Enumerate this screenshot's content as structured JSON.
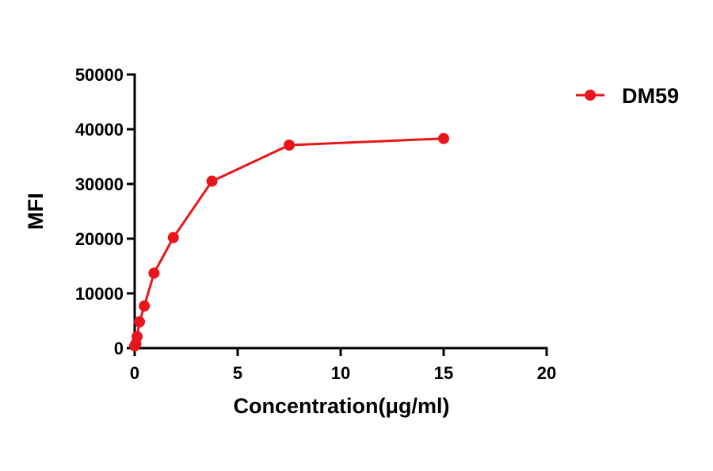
{
  "chart_data": {
    "type": "line",
    "title": "",
    "xlabel": "Concentration(μg/ml)",
    "ylabel": "MFI",
    "xlim": [
      0,
      20
    ],
    "ylim": [
      0,
      50000
    ],
    "xticks": [
      0,
      5,
      10,
      15,
      20
    ],
    "yticks": [
      0,
      10000,
      20000,
      30000,
      40000,
      50000
    ],
    "grid": false,
    "legend_position": "top-right",
    "series": [
      {
        "name": "DM59",
        "color": "#e8161b",
        "marker": "circle",
        "x": [
          0.0,
          0.0586,
          0.117,
          0.234,
          0.469,
          0.938,
          1.875,
          3.75,
          7.5,
          15
        ],
        "y": [
          400,
          800,
          2100,
          4800,
          7700,
          13700,
          20200,
          30500,
          37100,
          38300
        ]
      }
    ]
  }
}
